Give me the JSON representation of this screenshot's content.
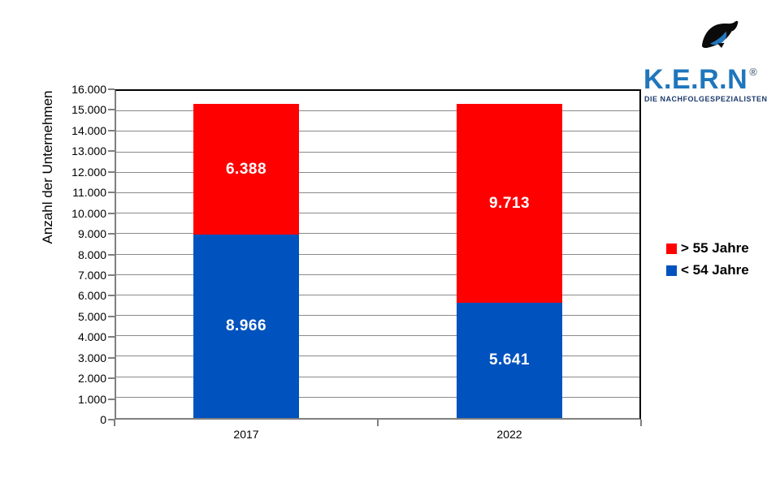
{
  "logo": {
    "brand": "K.E.R.N",
    "registered": "®",
    "tagline": "DIE NACHFOLGESPEZIALISTEN",
    "brand_color": "#1F76BC",
    "tagline_color": "#1C3A6B"
  },
  "chart_data": {
    "type": "bar",
    "subtype": "stacked",
    "title": "",
    "xlabel": "",
    "ylabel": "Anzahl der Unternehmen",
    "categories": [
      "2017",
      "2022"
    ],
    "series": [
      {
        "name": "< 54 Jahre",
        "color": "#0052BE",
        "values": [
          8966,
          5641
        ],
        "labels": [
          "8.966",
          "5.641"
        ]
      },
      {
        "name": "> 55 Jahre",
        "color": "#FF0000",
        "values": [
          6388,
          9713
        ],
        "labels": [
          "6.388",
          "9.713"
        ]
      }
    ],
    "totals": [
      15354,
      15354
    ],
    "ylim": [
      0,
      16000
    ],
    "ytick_step": 1000,
    "yticks": [
      "16.000",
      "15.000",
      "14.000",
      "13.000",
      "12.000",
      "11.000",
      "10.000",
      "9.000",
      "8.000",
      "7.000",
      "6.000",
      "5.000",
      "4.000",
      "3.000",
      "2.000",
      "1.000",
      "0"
    ],
    "grid": true,
    "gridline_color": "#8A8A8A",
    "value_label_color": "#FFFFFF",
    "legend_position": "right",
    "legend": [
      {
        "label": "> 55 Jahre",
        "color": "#FF0000"
      },
      {
        "label": "< 54 Jahre",
        "color": "#0052BE"
      }
    ]
  }
}
